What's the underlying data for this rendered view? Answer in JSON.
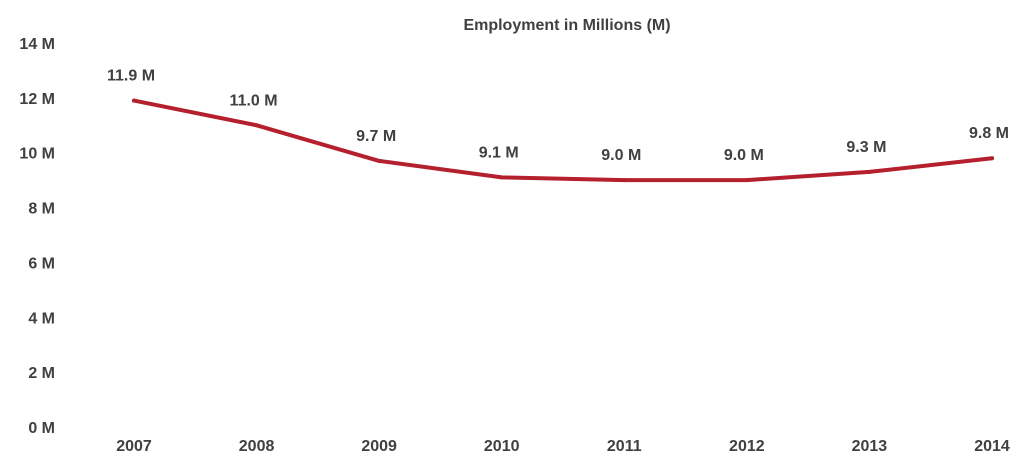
{
  "chart_data": {
    "type": "line",
    "title": "Employment in Millions (M)",
    "xlabel": "",
    "ylabel": "",
    "categories": [
      "2007",
      "2008",
      "2009",
      "2010",
      "2011",
      "2012",
      "2013",
      "2014"
    ],
    "series": [
      {
        "values": [
          11.9,
          11.0,
          9.7,
          9.1,
          9.0,
          9.0,
          9.3,
          9.8
        ],
        "data_labels": [
          "11.9 M",
          "11.0 M",
          "9.7 M",
          "9.1 M",
          "9.0 M",
          "9.0 M",
          "9.3 M",
          "9.8 M"
        ],
        "color": "#b5202e"
      }
    ],
    "ylim": [
      0,
      14
    ],
    "y_ticks": [
      0,
      2,
      4,
      6,
      8,
      10,
      12,
      14
    ],
    "y_tick_labels": [
      "0 M",
      "2 M",
      "4 M",
      "6 M",
      "8 M",
      "10 M",
      "12 M",
      "14 M"
    ],
    "grid": false,
    "legend": "none"
  },
  "colors": {
    "line": "#b5202e",
    "text": "#404040",
    "background": "#ffffff"
  }
}
